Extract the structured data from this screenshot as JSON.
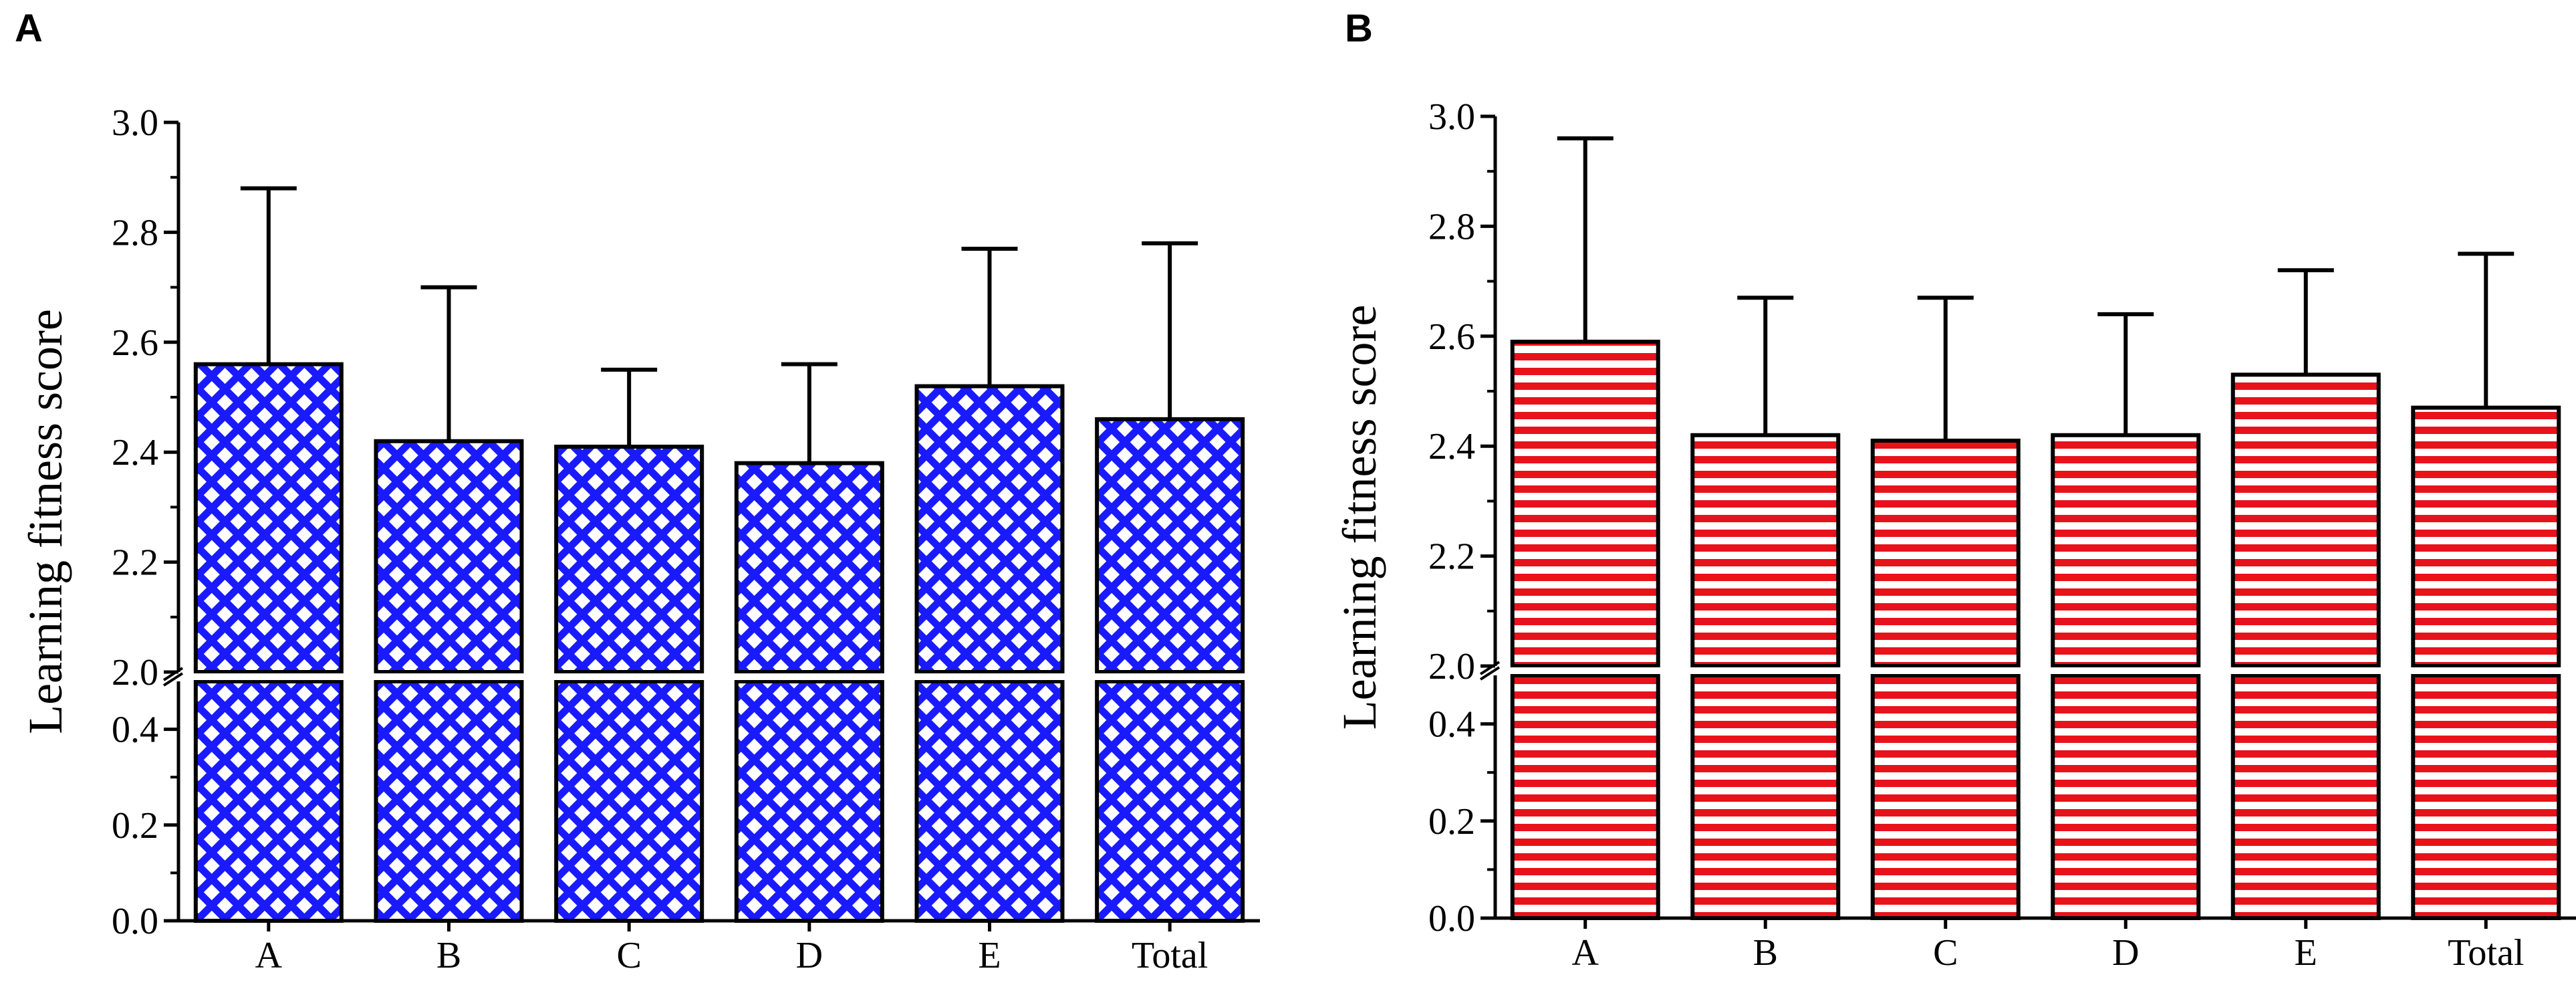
{
  "chart_data": [
    {
      "panel": "A",
      "type": "bar",
      "title": "",
      "xlabel": "",
      "ylabel": "Learning fitness score",
      "categories": [
        "A",
        "B",
        "C",
        "D",
        "E",
        "Total"
      ],
      "values": [
        2.56,
        2.42,
        2.41,
        2.38,
        2.52,
        2.46
      ],
      "error_upper": [
        2.88,
        2.7,
        2.55,
        2.56,
        2.77,
        2.78
      ],
      "axis_break": {
        "lower_range": [
          0,
          0.5
        ],
        "upper_range": [
          2.0,
          3.0
        ]
      },
      "lower_ticks": [
        "0.0",
        "0.2",
        "0.4"
      ],
      "upper_ticks": [
        "2.0",
        "2.2",
        "2.4",
        "2.6",
        "2.8",
        "3.0"
      ],
      "pattern": "crosshatch",
      "fill_color": "#1a1aff",
      "edge_color": "#000000"
    },
    {
      "panel": "B",
      "type": "bar",
      "title": "",
      "xlabel": "",
      "ylabel": "Learning fitness score",
      "categories": [
        "A",
        "B",
        "C",
        "D",
        "E",
        "Total"
      ],
      "values": [
        2.59,
        2.42,
        2.41,
        2.42,
        2.53,
        2.47
      ],
      "error_upper": [
        2.96,
        2.67,
        2.67,
        2.64,
        2.72,
        2.75
      ],
      "axis_break": {
        "lower_range": [
          0,
          0.5
        ],
        "upper_range": [
          2.0,
          3.0
        ]
      },
      "lower_ticks": [
        "0.0",
        "0.2",
        "0.4"
      ],
      "upper_ticks": [
        "2.0",
        "2.2",
        "2.4",
        "2.6",
        "2.8",
        "3.0"
      ],
      "pattern": "horizontal-stripes",
      "fill_color": "#e8121b",
      "edge_color": "#000000"
    }
  ]
}
